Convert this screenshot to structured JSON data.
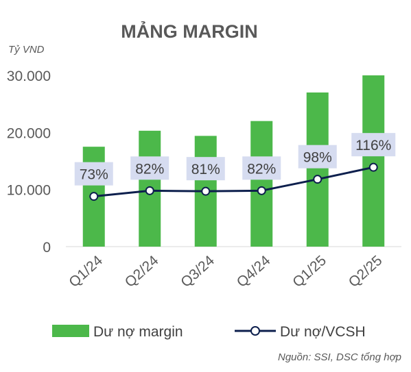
{
  "chart_data": {
    "type": "bar",
    "title": "MẢNG MARGIN",
    "unit_label": "Tỷ VND",
    "categories": [
      "Q1/24",
      "Q2/24",
      "Q3/24",
      "Q4/24",
      "Q1/25",
      "Q2/25"
    ],
    "ylim": [
      0,
      30000
    ],
    "yticks": [
      0,
      10000,
      20000,
      30000
    ],
    "ytick_labels": [
      "0",
      "10.000",
      "20.000",
      "30.000"
    ],
    "series": [
      {
        "name": "Dư nợ margin",
        "type": "bar",
        "color": "#4cb84a",
        "values": [
          17500,
          20300,
          19400,
          22000,
          27000,
          30000
        ]
      },
      {
        "name": "Dư nợ/VCSH",
        "type": "line",
        "color": "#0d1f4d",
        "values": [
          8800,
          9800,
          9700,
          9800,
          11800,
          13900
        ],
        "data_labels": [
          "73%",
          "82%",
          "81%",
          "82%",
          "98%",
          "116%"
        ]
      }
    ],
    "legend": "bottom",
    "grid": false
  },
  "source": "Nguồn: SSI, DSC tổng hợp",
  "label_bg_color": "#d6dcf0"
}
